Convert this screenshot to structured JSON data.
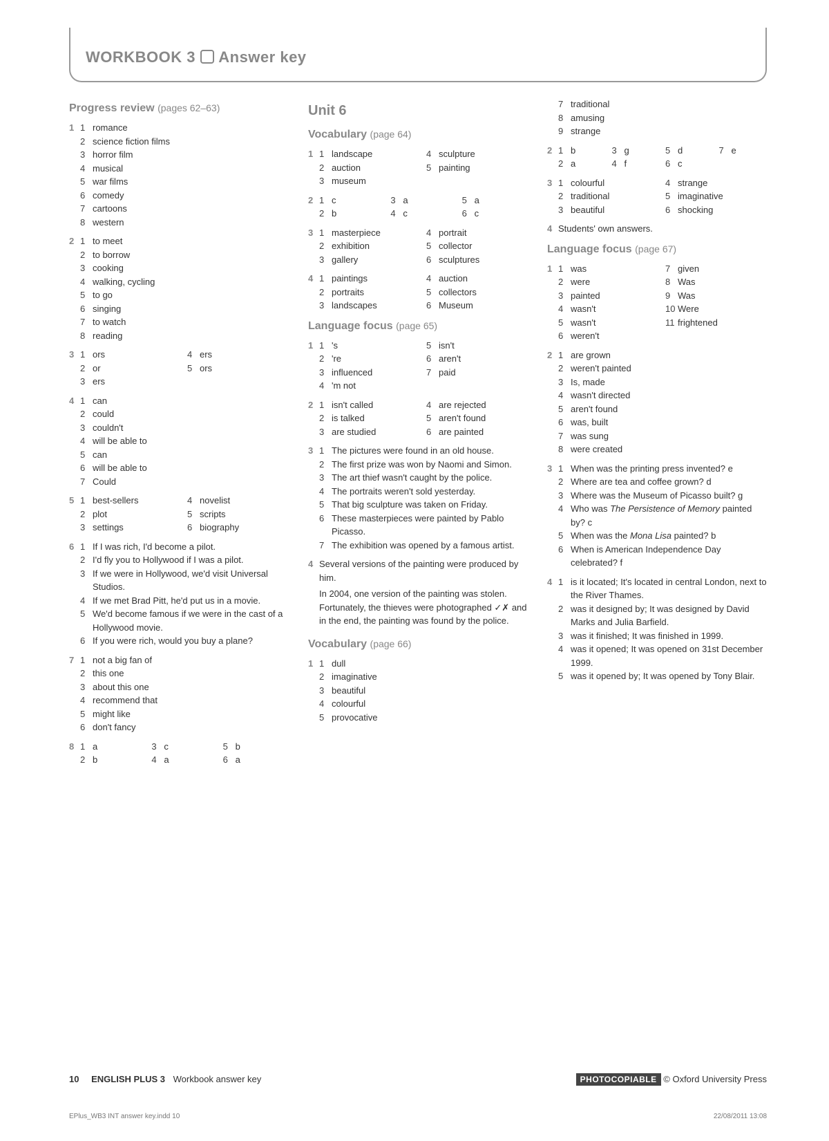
{
  "header": {
    "title_pre": "WORKBOOK 3",
    "title_post": "Answer key"
  },
  "col1": {
    "s1": {
      "title": "Progress review",
      "pgref": "(pages 62–63)"
    },
    "e1": [
      "romance",
      "science fiction films",
      "horror film",
      "musical",
      "war films",
      "comedy",
      "cartoons",
      "western"
    ],
    "e2": [
      "to meet",
      "to borrow",
      "cooking",
      "walking, cycling",
      "to go",
      "singing",
      "to watch",
      "reading"
    ],
    "e3": [
      "ors",
      "or",
      "ers",
      "ers",
      "ors"
    ],
    "e4": [
      "can",
      "could",
      "couldn't",
      "will be able to",
      "can",
      "will be able to",
      "Could"
    ],
    "e5": [
      "best-sellers",
      "plot",
      "settings",
      "novelist",
      "scripts",
      "biography"
    ],
    "e6": [
      "If I was rich, I'd become a pilot.",
      "I'd fly you to Hollywood if I was a pilot.",
      "If we were in Hollywood, we'd visit Universal Studios.",
      "If we met Brad Pitt, he'd put us in a movie.",
      "We'd become famous if we were in the cast of a Hollywood movie.",
      "If you were rich, would you buy a plane?"
    ],
    "e7": [
      "not a big fan of",
      "this one",
      "about this one",
      "recommend that",
      "might like",
      "don't fancy"
    ],
    "e8": [
      "a",
      "b",
      "c",
      "a",
      "b",
      "a"
    ]
  },
  "col2": {
    "unit": "Unit 6",
    "s1": {
      "title": "Vocabulary",
      "pgref": "(page 64)"
    },
    "v1": [
      "landscape",
      "auction",
      "museum",
      "sculpture",
      "painting"
    ],
    "v2": [
      "c",
      "b",
      "a",
      "c",
      "a",
      "c"
    ],
    "v3": [
      "masterpiece",
      "exhibition",
      "gallery",
      "portrait",
      "collector",
      "sculptures"
    ],
    "v4": [
      "paintings",
      "portraits",
      "landscapes",
      "auction",
      "collectors",
      "Museum"
    ],
    "s2": {
      "title": "Language focus",
      "pgref": "(page 65)"
    },
    "l1": [
      "'s",
      "'re",
      "influenced",
      "'m not",
      "isn't",
      "aren't",
      "paid"
    ],
    "l2": [
      "isn't called",
      "is talked",
      "are studied",
      "are rejected",
      "aren't found",
      "are painted"
    ],
    "l3": [
      "The pictures were found in an old house.",
      "The first prize was won by Naomi and Simon.",
      "The art thief wasn't caught by the police.",
      "The portraits weren't sold yesterday.",
      "That big sculpture was taken on Friday.",
      "These masterpieces were painted by Pablo Picasso.",
      "The exhibition was opened by a famous artist."
    ],
    "l4a": "Several versions of the painting were produced by him.",
    "l4b": "In 2004, one version of the painting was stolen. Fortunately, the thieves were photographed ✓✗ and in the end, the painting was found by the police.",
    "s3": {
      "title": "Vocabulary",
      "pgref": "(page 66)"
    },
    "v66": [
      "dull",
      "imaginative",
      "beautiful",
      "colourful",
      "provocative"
    ]
  },
  "col3": {
    "cont": [
      "traditional",
      "amusing",
      "strange"
    ],
    "e2": [
      "b",
      "a",
      "g",
      "f",
      "d",
      "c",
      "e"
    ],
    "e3": [
      "colourful",
      "traditional",
      "beautiful",
      "strange",
      "imaginative",
      "shocking"
    ],
    "e4": "Students' own answers.",
    "s1": {
      "title": "Language focus",
      "pgref": "(page 67)"
    },
    "l1": [
      "was",
      "were",
      "painted",
      "wasn't",
      "wasn't",
      "weren't",
      "given",
      "Was",
      "Was",
      "Were",
      "frightened"
    ],
    "l2": [
      "are grown",
      "weren't painted",
      "Is, made",
      "wasn't directed",
      "aren't found",
      "was, built",
      "was sung",
      "were created"
    ],
    "l3": [
      "When was the printing press invented?   e",
      "Where are tea and coffee grown?   d",
      "Where was the Museum of Picasso built?   g",
      "Who was <i>The Persistence of Memory</i> painted by?   c",
      "When was the <i>Mona Lisa</i> painted?   b",
      "When is American Independence Day celebrated?   f"
    ],
    "l4": [
      "is it located; It's located in central London, next to the River Thames.",
      "was it designed by; It was designed by David Marks and Julia Barfield.",
      "was it finished; It was finished in 1999.",
      "was it opened; It was opened on 31st December 1999.",
      "was it opened by; It was opened by Tony Blair."
    ]
  },
  "footer": {
    "page": "10",
    "title1": "ENGLISH PLUS 3",
    "title2": "Workbook answer key",
    "badge": "PHOTOCOPIABLE",
    "copyright": "© Oxford University Press"
  },
  "indd": {
    "file": "EPlus_WB3 INT answer key.indd   10",
    "ts": "22/08/2011   13:08"
  }
}
